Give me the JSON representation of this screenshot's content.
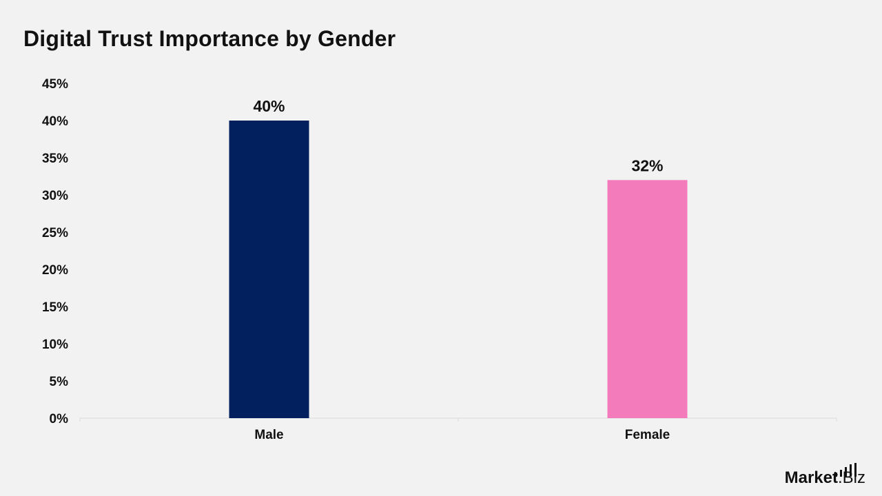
{
  "chart_data": {
    "type": "bar",
    "title": "Digital Trust Importance by Gender",
    "categories": [
      "Male",
      "Female"
    ],
    "values": [
      40,
      32
    ],
    "data_labels": [
      "40%",
      "32%"
    ],
    "colors": [
      "#03205e",
      "#f47bbb"
    ],
    "ylim": [
      0,
      45
    ],
    "y_ticks": [
      "0%",
      "5%",
      "10%",
      "15%",
      "20%",
      "25%",
      "30%",
      "35%",
      "40%",
      "45%"
    ],
    "y_tick_values": [
      0,
      5,
      10,
      15,
      20,
      25,
      30,
      35,
      40,
      45
    ],
    "xlabel": "",
    "ylabel": "",
    "grid": false,
    "legend": "none"
  },
  "branding": {
    "strong": "Market",
    "light": ".Biz",
    "icon": "bar-signal-icon"
  }
}
